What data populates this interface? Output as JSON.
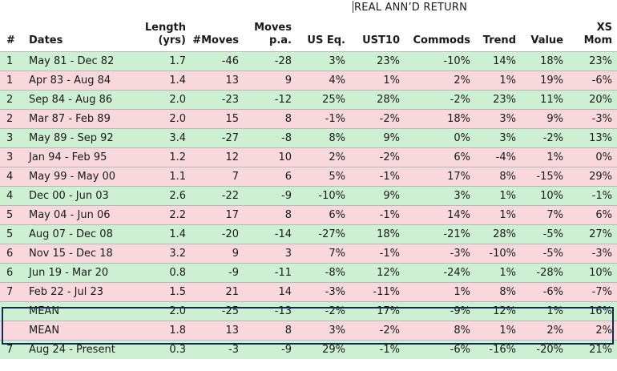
{
  "super_header": "REAL ANN’D RETURN",
  "headers": {
    "num": "#",
    "dates": "Dates",
    "length_top": "Length",
    "length_bottom": "(yrs)",
    "moves": "#Moves",
    "pa_top": "Moves",
    "pa_bottom": "p.a.",
    "us": "US Eq.",
    "ust": "UST10",
    "com": "Commods",
    "trend": "Trend",
    "value": "Value",
    "xs_top": "XS",
    "xs_bottom": "Mom"
  },
  "colors": {
    "green": "#cdf0d2",
    "pink": "#f8d8dc",
    "mean_border": "#0f2d52"
  },
  "rows": [
    {
      "num": "1",
      "dates": "May 81 - Dec 82",
      "len": "1.7",
      "moves": "-46",
      "pa": "-28",
      "us": "3%",
      "ust": "23%",
      "com": "-10%",
      "tr": "14%",
      "val": "18%",
      "xs": "23%",
      "color": "green"
    },
    {
      "num": "1",
      "dates": "Apr 83 - Aug 84",
      "len": "1.4",
      "moves": "13",
      "pa": "9",
      "us": "4%",
      "ust": "1%",
      "com": "2%",
      "tr": "1%",
      "val": "19%",
      "xs": "-6%",
      "color": "pink"
    },
    {
      "num": "2",
      "dates": "Sep 84 - Aug 86",
      "len": "2.0",
      "moves": "-23",
      "pa": "-12",
      "us": "25%",
      "ust": "28%",
      "com": "-2%",
      "tr": "23%",
      "val": "11%",
      "xs": "20%",
      "color": "green"
    },
    {
      "num": "2",
      "dates": "Mar 87 - Feb 89",
      "len": "2.0",
      "moves": "15",
      "pa": "8",
      "us": "-1%",
      "ust": "-2%",
      "com": "18%",
      "tr": "3%",
      "val": "9%",
      "xs": "-3%",
      "color": "pink"
    },
    {
      "num": "3",
      "dates": "May 89 - Sep 92",
      "len": "3.4",
      "moves": "-27",
      "pa": "-8",
      "us": "8%",
      "ust": "9%",
      "com": "0%",
      "tr": "3%",
      "val": "-2%",
      "xs": "13%",
      "color": "green"
    },
    {
      "num": "3",
      "dates": "Jan 94 - Feb 95",
      "len": "1.2",
      "moves": "12",
      "pa": "10",
      "us": "2%",
      "ust": "-2%",
      "com": "6%",
      "tr": "-4%",
      "val": "1%",
      "xs": "0%",
      "color": "pink"
    },
    {
      "num": "4",
      "dates": "May 99 - May 00",
      "len": "1.1",
      "moves": "7",
      "pa": "6",
      "us": "5%",
      "ust": "-1%",
      "com": "17%",
      "tr": "8%",
      "val": "-15%",
      "xs": "29%",
      "color": "pink"
    },
    {
      "num": "4",
      "dates": "Dec 00 - Jun 03",
      "len": "2.6",
      "moves": "-22",
      "pa": "-9",
      "us": "-10%",
      "ust": "9%",
      "com": "3%",
      "tr": "1%",
      "val": "10%",
      "xs": "-1%",
      "color": "green"
    },
    {
      "num": "5",
      "dates": "May 04 - Jun 06",
      "len": "2.2",
      "moves": "17",
      "pa": "8",
      "us": "6%",
      "ust": "-1%",
      "com": "14%",
      "tr": "1%",
      "val": "7%",
      "xs": "6%",
      "color": "pink"
    },
    {
      "num": "5",
      "dates": "Aug 07 - Dec 08",
      "len": "1.4",
      "moves": "-20",
      "pa": "-14",
      "us": "-27%",
      "ust": "18%",
      "com": "-21%",
      "tr": "28%",
      "val": "-5%",
      "xs": "27%",
      "color": "green"
    },
    {
      "num": "6",
      "dates": "Nov 15 - Dec 18",
      "len": "3.2",
      "moves": "9",
      "pa": "3",
      "us": "7%",
      "ust": "-1%",
      "com": "-3%",
      "tr": "-10%",
      "val": "-5%",
      "xs": "-3%",
      "color": "pink"
    },
    {
      "num": "6",
      "dates": "Jun 19 - Mar 20",
      "len": "0.8",
      "moves": "-9",
      "pa": "-11",
      "us": "-8%",
      "ust": "12%",
      "com": "-24%",
      "tr": "1%",
      "val": "-28%",
      "xs": "10%",
      "color": "green"
    },
    {
      "num": "7",
      "dates": "Feb 22 - Jul 23",
      "len": "1.5",
      "moves": "21",
      "pa": "14",
      "us": "-3%",
      "ust": "-11%",
      "com": "1%",
      "tr": "8%",
      "val": "-6%",
      "xs": "-7%",
      "color": "pink"
    },
    {
      "num": "",
      "dates": "MEAN",
      "len": "2.0",
      "moves": "-25",
      "pa": "-13",
      "us": "-2%",
      "ust": "17%",
      "com": "-9%",
      "tr": "12%",
      "val": "1%",
      "xs": "16%",
      "color": "green"
    },
    {
      "num": "",
      "dates": "MEAN",
      "len": "1.8",
      "moves": "13",
      "pa": "8",
      "us": "3%",
      "ust": "-2%",
      "com": "8%",
      "tr": "1%",
      "val": "2%",
      "xs": "2%",
      "color": "pink"
    },
    {
      "num": "7",
      "dates": "Aug 24 - Present",
      "len": "0.3",
      "moves": "-3",
      "pa": "-9",
      "us": "29%",
      "ust": "-1%",
      "com": "-6%",
      "tr": "-16%",
      "val": "-20%",
      "xs": "21%",
      "color": "green"
    }
  ]
}
